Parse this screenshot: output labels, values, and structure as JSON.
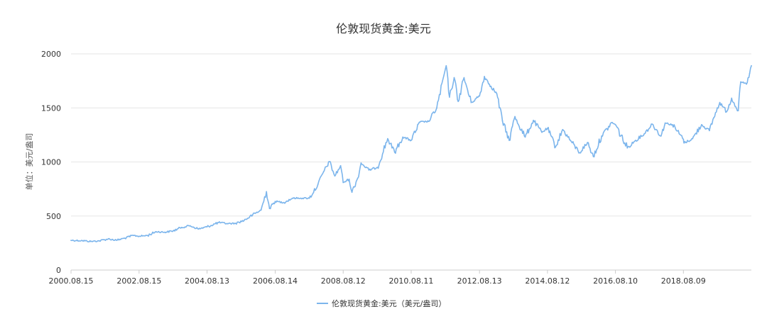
{
  "chart_data": {
    "type": "line",
    "title": "伦敦现货黄金:美元",
    "ylabel": "单位：美元/盎司",
    "xlabel": "",
    "ylim": [
      0,
      2000
    ],
    "yticks": [
      "0",
      "500",
      "1000",
      "1500",
      "2000"
    ],
    "xticks": [
      "2000.08.15",
      "2002.08.15",
      "2004.08.13",
      "2006.08.14",
      "2008.08.12",
      "2010.08.11",
      "2012.08.13",
      "2014.08.12",
      "2016.08.10",
      "2018.08.09"
    ],
    "x_range": [
      "2000.08.15",
      "2020.08.07"
    ],
    "grid": "horizontal",
    "legend_position": "bottom-center",
    "series": [
      {
        "name": "伦敦现货黄金:美元（美元/盎司）",
        "color": "#7cb5ec",
        "points": [
          [
            "2000.08.15",
            275
          ],
          [
            "2000.12.15",
            272
          ],
          [
            "2001.03.15",
            265
          ],
          [
            "2001.06.15",
            270
          ],
          [
            "2001.09.17",
            288
          ],
          [
            "2001.12.14",
            276
          ],
          [
            "2002.03.15",
            295
          ],
          [
            "2002.06.14",
            320
          ],
          [
            "2002.08.15",
            313
          ],
          [
            "2002.11.15",
            320
          ],
          [
            "2003.02.14",
            355
          ],
          [
            "2003.05.15",
            350
          ],
          [
            "2003.08.15",
            362
          ],
          [
            "2003.11.14",
            395
          ],
          [
            "2004.02.13",
            410
          ],
          [
            "2004.05.14",
            380
          ],
          [
            "2004.08.13",
            400
          ],
          [
            "2004.12.15",
            440
          ],
          [
            "2005.03.15",
            430
          ],
          [
            "2005.06.15",
            432
          ],
          [
            "2005.09.15",
            460
          ],
          [
            "2005.12.15",
            510
          ],
          [
            "2006.03.15",
            555
          ],
          [
            "2006.05.12",
            725
          ],
          [
            "2006.06.14",
            570
          ],
          [
            "2006.08.14",
            635
          ],
          [
            "2006.11.15",
            625
          ],
          [
            "2007.02.15",
            665
          ],
          [
            "2007.05.15",
            665
          ],
          [
            "2007.08.15",
            665
          ],
          [
            "2007.11.15",
            790
          ],
          [
            "2008.01.15",
            910
          ],
          [
            "2008.03.17",
            1003
          ],
          [
            "2008.05.15",
            870
          ],
          [
            "2008.07.15",
            965
          ],
          [
            "2008.08.12",
            810
          ],
          [
            "2008.10.15",
            840
          ],
          [
            "2008.11.14",
            720
          ],
          [
            "2009.01.15",
            850
          ],
          [
            "2009.02.20",
            990
          ],
          [
            "2009.05.15",
            925
          ],
          [
            "2009.08.14",
            950
          ],
          [
            "2009.12.02",
            1215
          ],
          [
            "2010.02.15",
            1090
          ],
          [
            "2010.05.14",
            1230
          ],
          [
            "2010.08.11",
            1200
          ],
          [
            "2010.11.15",
            1370
          ],
          [
            "2011.02.15",
            1375
          ],
          [
            "2011.05.13",
            1500
          ],
          [
            "2011.08.22",
            1890
          ],
          [
            "2011.09.26",
            1600
          ],
          [
            "2011.11.15",
            1780
          ],
          [
            "2011.12.29",
            1560
          ],
          [
            "2012.02.29",
            1780
          ],
          [
            "2012.05.15",
            1550
          ],
          [
            "2012.08.13",
            1610
          ],
          [
            "2012.10.05",
            1790
          ],
          [
            "2012.12.14",
            1700
          ],
          [
            "2013.02.15",
            1630
          ],
          [
            "2013.04.16",
            1380
          ],
          [
            "2013.06.28",
            1200
          ],
          [
            "2013.08.28",
            1420
          ],
          [
            "2013.12.16",
            1230
          ],
          [
            "2014.03.14",
            1385
          ],
          [
            "2014.06.13",
            1275
          ],
          [
            "2014.08.12",
            1310
          ],
          [
            "2014.11.07",
            1140
          ],
          [
            "2015.01.22",
            1300
          ],
          [
            "2015.04.15",
            1200
          ],
          [
            "2015.07.24",
            1085
          ],
          [
            "2015.10.15",
            1180
          ],
          [
            "2015.12.17",
            1050
          ],
          [
            "2016.03.15",
            1240
          ],
          [
            "2016.07.06",
            1365
          ],
          [
            "2016.08.10",
            1345
          ],
          [
            "2016.12.15",
            1130
          ],
          [
            "2017.03.15",
            1200
          ],
          [
            "2017.06.15",
            1260
          ],
          [
            "2017.09.08",
            1350
          ],
          [
            "2017.12.12",
            1240
          ],
          [
            "2018.01.25",
            1360
          ],
          [
            "2018.04.13",
            1345
          ],
          [
            "2018.08.09",
            1210
          ],
          [
            "2018.08.16",
            1175
          ],
          [
            "2018.11.15",
            1215
          ],
          [
            "2019.02.20",
            1345
          ],
          [
            "2019.05.15",
            1290
          ],
          [
            "2019.07.01",
            1410
          ],
          [
            "2019.09.04",
            1550
          ],
          [
            "2019.11.15",
            1465
          ],
          [
            "2020.01.08",
            1590
          ],
          [
            "2020.03.19",
            1475
          ],
          [
            "2020.04.15",
            1740
          ],
          [
            "2020.06.15",
            1720
          ],
          [
            "2020.07.20",
            1820
          ],
          [
            "2020.08.07",
            1890
          ]
        ]
      }
    ]
  }
}
